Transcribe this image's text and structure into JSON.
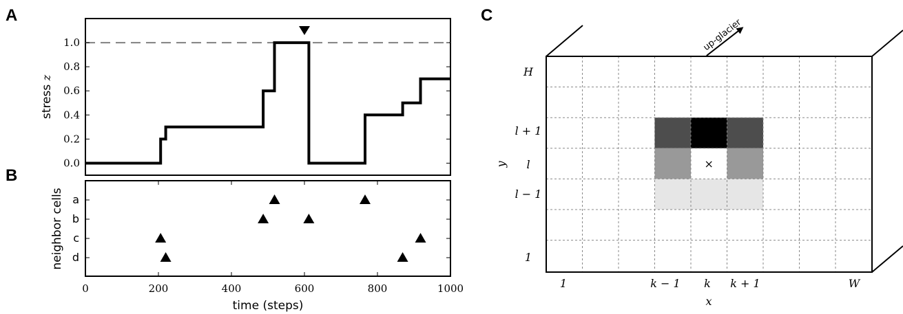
{
  "chart_data": [
    {
      "panel": "A",
      "type": "line",
      "ylabel": "stress z",
      "ylabel_text": "stress ",
      "ylabel_var": "z",
      "xlim": [
        0,
        1000
      ],
      "ylim": [
        -0.1,
        1.2
      ],
      "yticks": [
        "0.0",
        "0.2",
        "0.4",
        "0.6",
        "0.8",
        "1.0"
      ],
      "threshold": 1.0,
      "marker_x": 600,
      "series": [
        {
          "step": true,
          "x": [
            0,
            206,
            206,
            220,
            220,
            487,
            487,
            518,
            518,
            612,
            612,
            766,
            766,
            869,
            869,
            918,
            918,
            1000
          ],
          "y": [
            0,
            0,
            0.2,
            0.2,
            0.3,
            0.3,
            0.6,
            0.6,
            1.0,
            1.0,
            0,
            0,
            0.4,
            0.4,
            0.5,
            0.5,
            0.7,
            0.7
          ]
        }
      ]
    },
    {
      "panel": "B",
      "type": "scatter",
      "ylabel": "neighbor cells",
      "xlabel": "time (steps)",
      "xlim": [
        0,
        1000
      ],
      "xticks": [
        "0",
        "200",
        "400",
        "600",
        "800",
        "1000"
      ],
      "categories": [
        "a",
        "b",
        "c",
        "d"
      ],
      "points": [
        {
          "x": 206,
          "cat": "c"
        },
        {
          "x": 220,
          "cat": "d"
        },
        {
          "x": 487,
          "cat": "b"
        },
        {
          "x": 518,
          "cat": "a"
        },
        {
          "x": 612,
          "cat": "b"
        },
        {
          "x": 766,
          "cat": "a"
        },
        {
          "x": 869,
          "cat": "d"
        },
        {
          "x": 918,
          "cat": "c"
        }
      ]
    },
    {
      "panel": "C",
      "type": "heatmap",
      "xlabel": "x",
      "ylabel": "y",
      "arrow_label": "up-glacier",
      "x_tick_labels": [
        {
          "math": "1",
          "col": 1
        },
        {
          "math": "k − 1",
          "col": 4
        },
        {
          "math": "k",
          "col": 5
        },
        {
          "math": "k + 1",
          "col": 6
        },
        {
          "math": "W",
          "col": 10
        }
      ],
      "y_tick_labels": [
        {
          "math": "H",
          "row": 1
        },
        {
          "math": "l + 1",
          "row": 3
        },
        {
          "math": "l",
          "row": 4
        },
        {
          "math": "l − 1",
          "row": 5
        },
        {
          "math": "1",
          "row": 8
        }
      ],
      "center_marker": "×",
      "cells": [
        {
          "col": 4,
          "row": 3,
          "shade": "#4d4d4d"
        },
        {
          "col": 5,
          "row": 3,
          "shade": "#000000"
        },
        {
          "col": 6,
          "row": 3,
          "shade": "#4d4d4d"
        },
        {
          "col": 4,
          "row": 4,
          "shade": "#999999"
        },
        {
          "col": 5,
          "row": 4,
          "shade": "#ffffff"
        },
        {
          "col": 6,
          "row": 4,
          "shade": "#999999"
        },
        {
          "col": 4,
          "row": 5,
          "shade": "#e6e6e6"
        },
        {
          "col": 5,
          "row": 5,
          "shade": "#e6e6e6"
        },
        {
          "col": 6,
          "row": 5,
          "shade": "#e6e6e6"
        }
      ]
    }
  ],
  "labels": {
    "A": "A",
    "B": "B",
    "C": "C"
  }
}
